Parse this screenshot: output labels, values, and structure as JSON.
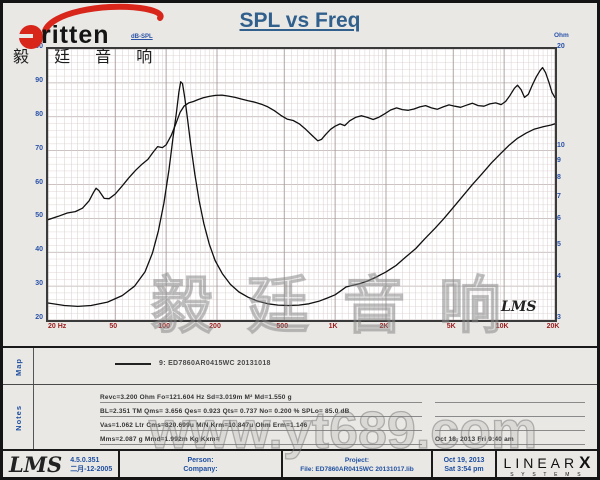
{
  "header": {
    "title": "SPL vs Freq",
    "brand": "ritten",
    "brand_cn": "毅 廷 音 响"
  },
  "watermarks": {
    "chart_cn": "毅廷音响",
    "site": "www.yt689.com"
  },
  "chart_data": {
    "type": "line",
    "title": "SPL vs Freq",
    "grid": "on",
    "x_axis": {
      "scale": "log",
      "min": 20,
      "max": 20000,
      "tick_labels": [
        "20 Hz",
        "50",
        "100",
        "200",
        "500",
        "1K",
        "2K",
        "5K",
        "10K",
        "20K"
      ],
      "tick_values": [
        20,
        50,
        100,
        200,
        500,
        1000,
        2000,
        5000,
        10000,
        20000
      ],
      "tick_color": "#9b1c1c"
    },
    "y_left": {
      "label": "dB-SPL",
      "min": 20,
      "max": 100,
      "tick_values": [
        100,
        90,
        80,
        70,
        60,
        50,
        40,
        30,
        20
      ],
      "tick_color": "#2a52a8"
    },
    "y_right": {
      "label": "Ohm",
      "scale": "log",
      "min": 3,
      "max": 20,
      "tick_values": [
        20,
        10,
        9,
        8,
        7,
        6,
        5,
        4,
        3
      ],
      "tick_color": "#2a52a8"
    },
    "series": [
      {
        "name": "SPL (dB)",
        "axis": "left",
        "color": "#101010",
        "points": [
          [
            20,
            49.6
          ],
          [
            23,
            50.6
          ],
          [
            26,
            51.6
          ],
          [
            29,
            52
          ],
          [
            32,
            53
          ],
          [
            35,
            55.2
          ],
          [
            37,
            57.5
          ],
          [
            38.5,
            58.9
          ],
          [
            40,
            58.2
          ],
          [
            43,
            55.9
          ],
          [
            46,
            55.8
          ],
          [
            50,
            57.2
          ],
          [
            55,
            59.6
          ],
          [
            60,
            61.9
          ],
          [
            66,
            64.2
          ],
          [
            72,
            66
          ],
          [
            78,
            67.4
          ],
          [
            84,
            69.6
          ],
          [
            89,
            71.2
          ],
          [
            95,
            70.9
          ],
          [
            100,
            71.7
          ],
          [
            107,
            74.4
          ],
          [
            114,
            77.8
          ],
          [
            121,
            81.3
          ],
          [
            128,
            83.2
          ],
          [
            136,
            84.1
          ],
          [
            145,
            84.5
          ],
          [
            155,
            85.1
          ],
          [
            166,
            85.6
          ],
          [
            180,
            86
          ],
          [
            196,
            86.3
          ],
          [
            214,
            86.4
          ],
          [
            234,
            86.1
          ],
          [
            256,
            85.7
          ],
          [
            280,
            85.2
          ],
          [
            306,
            84.7
          ],
          [
            335,
            84.3
          ],
          [
            366,
            83.7
          ],
          [
            400,
            82.9
          ],
          [
            437,
            81.8
          ],
          [
            478,
            80.4
          ],
          [
            520,
            79.3
          ],
          [
            565,
            78.9
          ],
          [
            615,
            77.9
          ],
          [
            670,
            76.3
          ],
          [
            730,
            74.5
          ],
          [
            790,
            72.9
          ],
          [
            830,
            73.3
          ],
          [
            880,
            74.8
          ],
          [
            940,
            76.3
          ],
          [
            1000,
            77.2
          ],
          [
            1070,
            77.9
          ],
          [
            1140,
            77.4
          ],
          [
            1220,
            78.8
          ],
          [
            1320,
            79.8
          ],
          [
            1430,
            80.3
          ],
          [
            1550,
            79.8
          ],
          [
            1680,
            79.2
          ],
          [
            1820,
            79.9
          ],
          [
            1970,
            80.9
          ],
          [
            2130,
            82
          ],
          [
            2310,
            82.6
          ],
          [
            2500,
            82.1
          ],
          [
            2710,
            81.9
          ],
          [
            2930,
            82.3
          ],
          [
            3170,
            82.9
          ],
          [
            3430,
            83.3
          ],
          [
            3720,
            82.6
          ],
          [
            4020,
            82.2
          ],
          [
            4360,
            82.9
          ],
          [
            4720,
            83.5
          ],
          [
            5110,
            83.1
          ],
          [
            5530,
            82.8
          ],
          [
            5990,
            83.4
          ],
          [
            6480,
            84
          ],
          [
            7020,
            83.3
          ],
          [
            7600,
            83.1
          ],
          [
            8230,
            83.8
          ],
          [
            8910,
            84.1
          ],
          [
            9600,
            83.6
          ],
          [
            10200,
            84.5
          ],
          [
            10800,
            86.2
          ],
          [
            11500,
            88.4
          ],
          [
            12000,
            89.3
          ],
          [
            12600,
            88
          ],
          [
            13200,
            85.7
          ],
          [
            13900,
            86.6
          ],
          [
            14700,
            89.4
          ],
          [
            15500,
            91.8
          ],
          [
            16300,
            93.6
          ],
          [
            16900,
            94.5
          ],
          [
            17600,
            93
          ],
          [
            18400,
            90.2
          ],
          [
            19200,
            87.2
          ],
          [
            20000,
            85.6
          ]
        ]
      },
      {
        "name": "Impedance (Ohm)",
        "axis": "right",
        "color": "#101010",
        "points": [
          [
            20,
            3.38
          ],
          [
            25,
            3.32
          ],
          [
            30,
            3.3
          ],
          [
            36,
            3.32
          ],
          [
            45,
            3.4
          ],
          [
            55,
            3.56
          ],
          [
            65,
            3.8
          ],
          [
            75,
            4.2
          ],
          [
            83,
            4.8
          ],
          [
            90,
            5.6
          ],
          [
            97,
            6.8
          ],
          [
            104,
            8.6
          ],
          [
            110,
            10.8
          ],
          [
            115,
            12.8
          ],
          [
            119,
            14.8
          ],
          [
            122,
            15.9
          ],
          [
            125,
            15.7
          ],
          [
            129,
            14.2
          ],
          [
            134,
            12.2
          ],
          [
            140,
            10.2
          ],
          [
            148,
            8.3
          ],
          [
            157,
            6.9
          ],
          [
            167,
            5.9
          ],
          [
            180,
            5.1
          ],
          [
            195,
            4.55
          ],
          [
            215,
            4.15
          ],
          [
            240,
            3.85
          ],
          [
            270,
            3.65
          ],
          [
            305,
            3.52
          ],
          [
            350,
            3.42
          ],
          [
            400,
            3.36
          ],
          [
            460,
            3.33
          ],
          [
            530,
            3.32
          ],
          [
            610,
            3.33
          ],
          [
            700,
            3.36
          ],
          [
            800,
            3.42
          ],
          [
            900,
            3.5
          ],
          [
            1000,
            3.58
          ],
          [
            1080,
            3.68
          ],
          [
            1160,
            3.78
          ],
          [
            1260,
            3.82
          ],
          [
            1400,
            3.87
          ],
          [
            1550,
            3.94
          ],
          [
            1750,
            4.05
          ],
          [
            2000,
            4.2
          ],
          [
            2300,
            4.4
          ],
          [
            2600,
            4.65
          ],
          [
            3000,
            4.95
          ],
          [
            3400,
            5.3
          ],
          [
            3900,
            5.7
          ],
          [
            4400,
            6.1
          ],
          [
            5000,
            6.6
          ],
          [
            5700,
            7.15
          ],
          [
            6500,
            7.75
          ],
          [
            7400,
            8.35
          ],
          [
            8400,
            9
          ],
          [
            9500,
            9.6
          ],
          [
            10700,
            10.2
          ],
          [
            12000,
            10.7
          ],
          [
            13500,
            11.1
          ],
          [
            15000,
            11.4
          ],
          [
            17000,
            11.6
          ],
          [
            19000,
            11.75
          ],
          [
            20000,
            11.85
          ]
        ]
      }
    ],
    "lms_mark": "LMS"
  },
  "map_row": {
    "label": "Map",
    "legend": "9:  ED7860AR0415WC  20131018"
  },
  "notes_row": {
    "label": "Notes",
    "lines": [
      "Revc=3.200 Ohm  Fo=121.604 Hz  Sd=3.019m M²  Md=1.550 g",
      "BL=2.351 TM  Qms= 3.656  Qes= 0.923  Qts= 0.737  No= 0.200 %  SPLo= 85.0 dB",
      "Vas=1.062 Ltr  Cms=820.699u M/N  Krm=10.847u Ohm  Erm=1.146",
      "Mms=2.087 g  Mmd=1.992m Kg  Kxm="
    ],
    "date_note": "Oct 18, 2013  Fri 9:40 am"
  },
  "footer": {
    "lms_logo": "LMS",
    "version": "4.5.0.351",
    "version_date": "二月-12-2005",
    "person_label": "Person:",
    "company_label": "Company:",
    "project_label": "Project:",
    "file_label": "File: ED7860AR0415WC  20131017.lib",
    "date": "Oct 19, 2013",
    "time": "Sat  3:54 pm",
    "brand": "LINEAR",
    "brand_x": "X",
    "brand_sub": "S Y S T E M S"
  }
}
